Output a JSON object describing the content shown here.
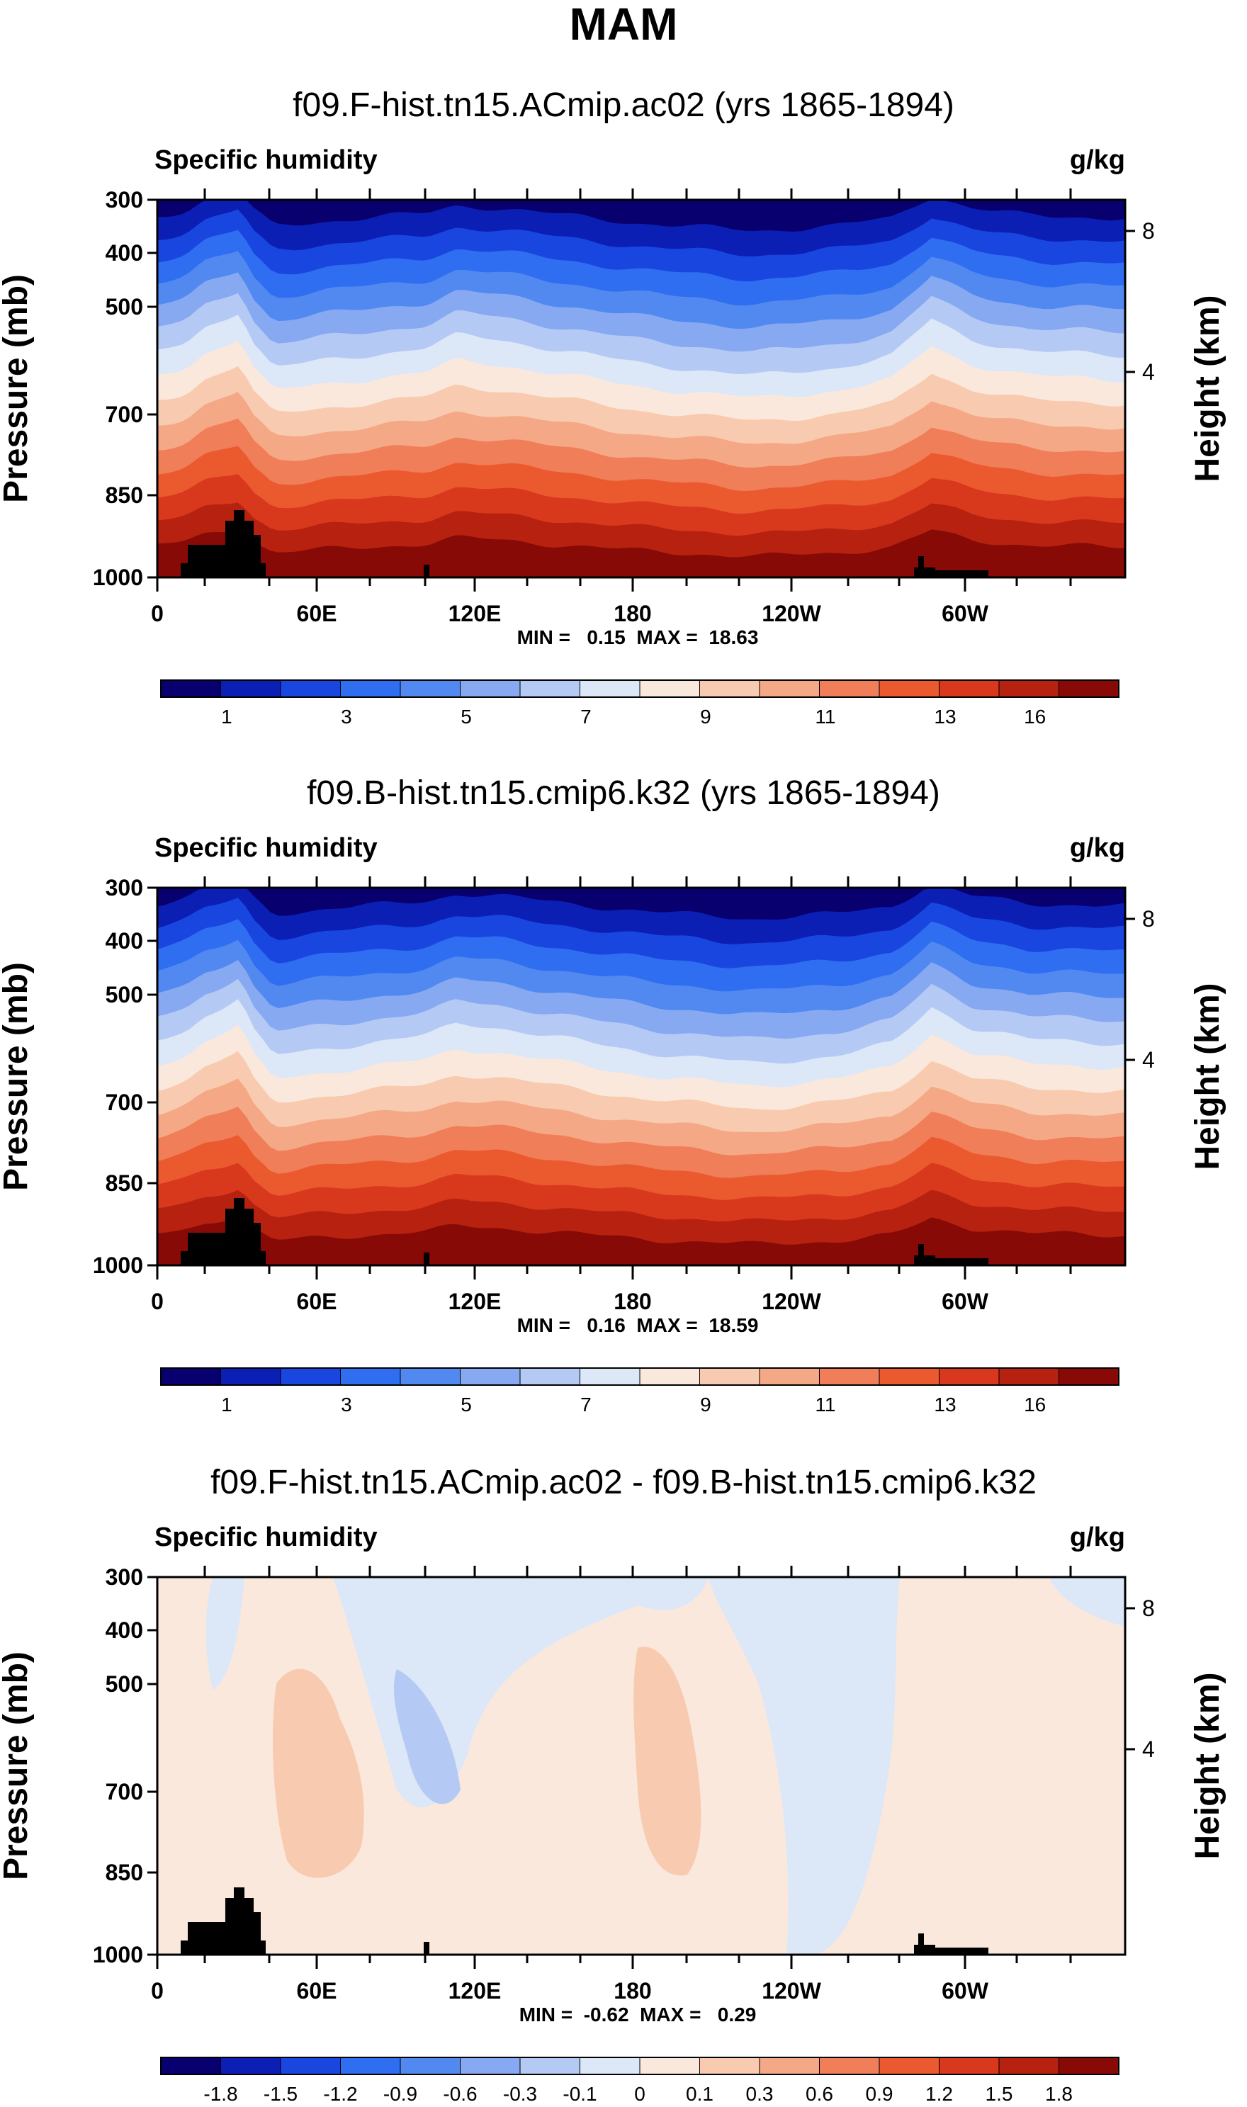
{
  "figure_title": "MAM",
  "chart_data": [
    {
      "type": "contour",
      "title": "f09.F-hist.tn15.ACmip.ac02 (yrs 1865-1894)",
      "variable": "Specific humidity",
      "units": "g/kg",
      "ylabel": "Pressure (mb)",
      "ylabel_right": "Height (km)",
      "pressure_ticks": [
        "300",
        "400",
        "500",
        "700",
        "850",
        "1000"
      ],
      "height_ticks": [
        "8",
        "4"
      ],
      "x_ticks": [
        "0",
        "60E",
        "120E",
        "180",
        "120W",
        "60W"
      ],
      "stats": "MIN =   0.15  MAX =  18.63",
      "min": 0.15,
      "max": 18.63,
      "colorbar_labels": [
        "1",
        "3",
        "5",
        "7",
        "9",
        "11",
        "13",
        "16"
      ],
      "kind": "abs"
    },
    {
      "type": "contour",
      "title": "f09.B-hist.tn15.cmip6.k32 (yrs 1865-1894)",
      "variable": "Specific humidity",
      "units": "g/kg",
      "ylabel": "Pressure (mb)",
      "ylabel_right": "Height (km)",
      "pressure_ticks": [
        "300",
        "400",
        "500",
        "700",
        "850",
        "1000"
      ],
      "height_ticks": [
        "8",
        "4"
      ],
      "x_ticks": [
        "0",
        "60E",
        "120E",
        "180",
        "120W",
        "60W"
      ],
      "stats": "MIN =   0.16  MAX =  18.59",
      "min": 0.16,
      "max": 18.59,
      "colorbar_labels": [
        "1",
        "3",
        "5",
        "7",
        "9",
        "11",
        "13",
        "16"
      ],
      "kind": "abs"
    },
    {
      "type": "contour",
      "title": "f09.F-hist.tn15.ACmip.ac02 - f09.B-hist.tn15.cmip6.k32",
      "variable": "Specific humidity",
      "units": "g/kg",
      "ylabel": "Pressure (mb)",
      "ylabel_right": "Height (km)",
      "pressure_ticks": [
        "300",
        "400",
        "500",
        "700",
        "850",
        "1000"
      ],
      "height_ticks": [
        "8",
        "4"
      ],
      "x_ticks": [
        "0",
        "60E",
        "120E",
        "180",
        "120W",
        "60W"
      ],
      "stats": "MIN =  -0.62  MAX =   0.29",
      "min": -0.62,
      "max": 0.29,
      "colorbar_labels": [
        "-1.8",
        "-1.5",
        "-1.2",
        "-0.9",
        "-0.6",
        "-0.3",
        "-0.1",
        "0",
        "0.1",
        "0.3",
        "0.6",
        "0.9",
        "1.2",
        "1.5",
        "1.8"
      ],
      "kind": "diff"
    }
  ],
  "palette": [
    "#08006e",
    "#0b1fb5",
    "#1a46e0",
    "#2f6ef0",
    "#5289f0",
    "#86a9f2",
    "#b5c9f5",
    "#dce7f8",
    "#fbe8dc",
    "#f8cbb1",
    "#f4a886",
    "#f07e58",
    "#eb5a2f",
    "#d8391c",
    "#b62110",
    "#870a06"
  ]
}
